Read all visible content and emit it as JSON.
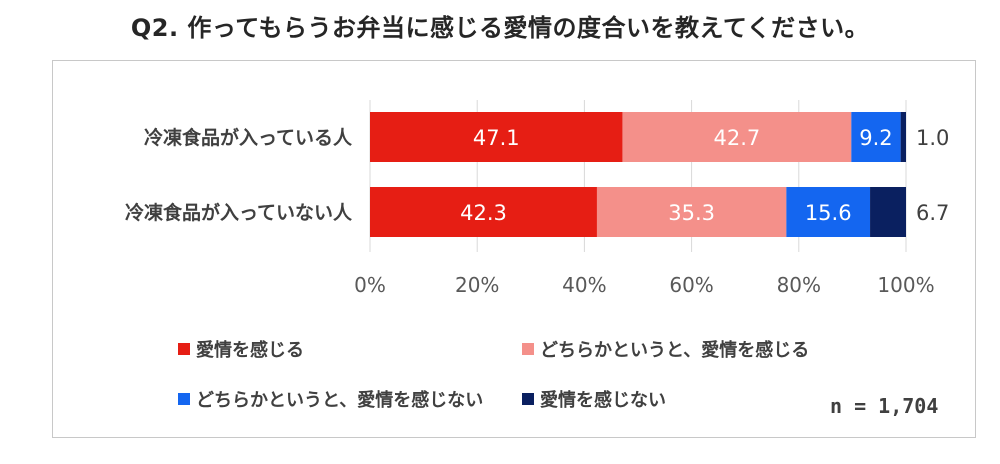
{
  "title": "Q2. 作ってもらうお弁当に感じる愛情の度合いを教えてください。",
  "chart_data": {
    "type": "bar",
    "orientation": "horizontal",
    "stacked": "percent",
    "categories": [
      "冷凍食品が入っている人",
      "冷凍食品が入っていない人"
    ],
    "series": [
      {
        "name": "愛情を感じる",
        "values": [
          47.1,
          42.3
        ],
        "color": "#E61E14"
      },
      {
        "name": "どちらかというと、愛情を感じる",
        "values": [
          42.7,
          35.3
        ],
        "color": "#F4908A"
      },
      {
        "name": "どちらかというと、愛情を感じない",
        "values": [
          9.2,
          15.6
        ],
        "color": "#1466F0"
      },
      {
        "name": "愛情を感じない",
        "values": [
          1.0,
          6.7
        ],
        "color": "#0A2060"
      }
    ],
    "xlim": [
      0,
      100
    ],
    "x_ticks": [
      "0%",
      "20%",
      "40%",
      "60%",
      "80%",
      "100%"
    ],
    "grid": true,
    "legend_position": "bottom",
    "note": "n = 1,704"
  }
}
